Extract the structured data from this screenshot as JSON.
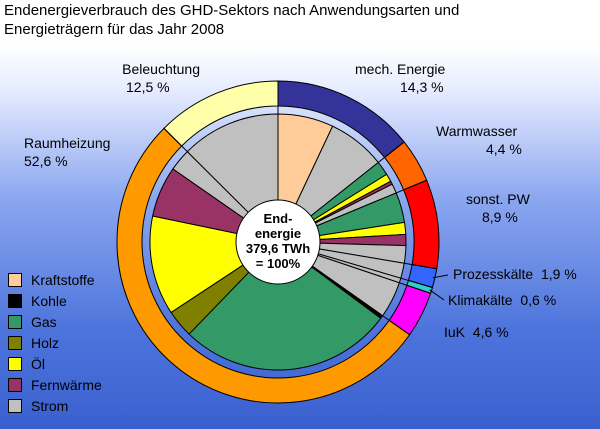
{
  "chart_data": {
    "type": "pie",
    "title": "Endenergieverbrauch des GHD-Sektors nach Anwendungsarten und\nEnergieträgern für das Jahr 2008",
    "center_label": [
      "End-",
      "energie",
      "379,6 TWh",
      "= 100%"
    ],
    "total_twh": 379.6,
    "outer_ring": [
      {
        "name": "mech. Energie",
        "value": 14.3,
        "label": "14,3 %",
        "color": "#333399"
      },
      {
        "name": "Warmwasser",
        "value": 4.4,
        "label": "4,4 %",
        "color": "#ff6600"
      },
      {
        "name": "sonst. PW",
        "value": 8.9,
        "label": "8,9 %",
        "color": "#ff0000"
      },
      {
        "name": "Prozesskälte",
        "value": 1.9,
        "label": "1,9 %",
        "color": "#3366ff"
      },
      {
        "name": "Klimakälte",
        "value": 0.6,
        "label": "0,6 %",
        "color": "#33cccc"
      },
      {
        "name": "IuK",
        "value": 4.6,
        "label": "4,6 %",
        "color": "#ff00ff"
      },
      {
        "name": "Raumheizung",
        "value": 52.6,
        "label": "52,6 %",
        "color": "#ff9900"
      },
      {
        "name": "Beleuchtung",
        "value": 12.5,
        "label": "12,5 %",
        "color": "#ffffaa"
      }
    ],
    "inner_pie": [
      {
        "name": "mech. Energie",
        "parts": [
          [
            "Kraftstoffe",
            7.0
          ],
          [
            "Strom",
            7.3
          ]
        ]
      },
      {
        "name": "Warmwasser",
        "parts": [
          [
            "Gas",
            1.8
          ],
          [
            "Öl",
            1.0
          ],
          [
            "Fernwärme",
            0.4
          ],
          [
            "Strom",
            1.2
          ]
        ]
      },
      {
        "name": "sonst. PW",
        "parts": [
          [
            "Gas",
            3.8
          ],
          [
            "Öl",
            1.5
          ],
          [
            "Fernwärme",
            1.4
          ],
          [
            "Strom",
            2.2
          ]
        ]
      },
      {
        "name": "Prozesskälte",
        "parts": [
          [
            "Strom",
            1.9
          ]
        ]
      },
      {
        "name": "Klimakälte",
        "parts": [
          [
            "Strom",
            0.6
          ]
        ]
      },
      {
        "name": "IuK",
        "parts": [
          [
            "Strom",
            4.6
          ]
        ]
      },
      {
        "name": "Raumheizung",
        "parts": [
          [
            "Kohle",
            0.4
          ],
          [
            "Gas",
            27.0
          ],
          [
            "Holz",
            3.5
          ],
          [
            "Öl",
            12.5
          ],
          [
            "Fernwärme",
            6.4
          ],
          [
            "Strom",
            2.8
          ]
        ]
      },
      {
        "name": "Beleuchtung",
        "parts": [
          [
            "Strom",
            12.5
          ]
        ]
      }
    ],
    "legend": [
      {
        "name": "Kraftstoffe",
        "color": "#ffcc99"
      },
      {
        "name": "Kohle",
        "color": "#000000"
      },
      {
        "name": "Gas",
        "color": "#339966"
      },
      {
        "name": "Holz",
        "color": "#808000"
      },
      {
        "name": "Öl",
        "color": "#ffff00"
      },
      {
        "name": "Fernwärme",
        "color": "#993366"
      },
      {
        "name": "Strom",
        "color": "#c0c0c0"
      }
    ]
  }
}
